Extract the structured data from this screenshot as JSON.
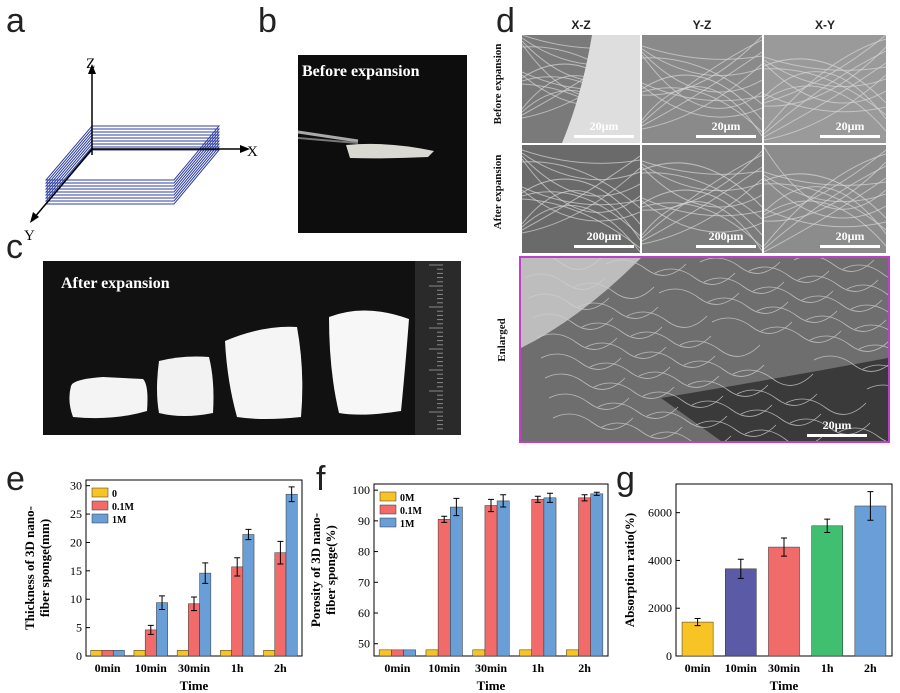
{
  "panel_labels": {
    "a": "a",
    "b": "b",
    "c": "c",
    "d": "d",
    "e": "e",
    "f": "f",
    "g": "g"
  },
  "panel_a": {
    "axis_z": "Z",
    "axis_x": "X",
    "axis_y": "Y"
  },
  "panel_b": {
    "caption": "Before expansion"
  },
  "panel_c": {
    "caption": "After expansion"
  },
  "panel_d": {
    "columns": [
      "X-Z",
      "Y-Z",
      "X-Y"
    ],
    "rows": [
      "Before\nexpansion",
      "After\nexpansion"
    ],
    "row_before": "Before expansion",
    "row_after": "After expansion",
    "scale_before": [
      "20μm",
      "20μm",
      "20μm"
    ],
    "scale_after": [
      "200μm",
      "200μm",
      "20μm"
    ],
    "enlarged_label": "Enlarged",
    "enlarged_scale": "20μm"
  },
  "colors": {
    "yellow": "#f7c325",
    "red": "#f26b6b",
    "blue": "#6a9ed6",
    "purple": "#5b5aa6",
    "green": "#3fbf6f",
    "magenta": "#c13ec9"
  },
  "chart_data": [
    {
      "type": "bar",
      "panel": "e",
      "categories": [
        "0min",
        "10min",
        "30min",
        "1h",
        "2h"
      ],
      "series": [
        {
          "name": "0",
          "values": [
            1,
            1,
            1,
            1,
            1
          ]
        },
        {
          "name": "0.1M",
          "values": [
            1,
            4.6,
            9.2,
            15.7,
            18.2
          ]
        },
        {
          "name": "1M",
          "values": [
            1,
            9.4,
            14.6,
            21.4,
            28.5
          ]
        }
      ],
      "errors": [
        [
          0,
          0,
          0,
          0,
          0
        ],
        [
          0,
          0.8,
          1.2,
          1.6,
          2.0
        ],
        [
          0,
          1.2,
          1.8,
          0.9,
          1.3
        ]
      ],
      "xlabel": "Time",
      "ylabel": "Thickness of 3D nano-fiber sponge(mm)",
      "ylim": [
        0,
        31
      ],
      "yticks": [
        0,
        5,
        10,
        15,
        20,
        25,
        30
      ],
      "legend": "top-left"
    },
    {
      "type": "bar",
      "panel": "f",
      "categories": [
        "0min",
        "10min",
        "30min",
        "1h",
        "2h"
      ],
      "series": [
        {
          "name": "0M",
          "values": [
            48,
            48,
            48,
            48,
            48
          ]
        },
        {
          "name": "0.1M",
          "values": [
            48,
            90.5,
            95,
            97,
            97.5
          ]
        },
        {
          "name": "1M",
          "values": [
            48,
            94.5,
            96.5,
            97.5,
            98.8
          ]
        }
      ],
      "errors": [
        [
          0,
          0,
          0,
          0,
          0
        ],
        [
          0,
          1,
          2,
          1,
          1
        ],
        [
          0,
          2.8,
          2,
          1.5,
          0.5
        ]
      ],
      "xlabel": "Time",
      "ylabel": "Porosity of 3D nano-fiber sponge(%)",
      "ylim": [
        46,
        102
      ],
      "yticks": [
        50,
        60,
        70,
        80,
        90,
        100
      ],
      "legend": "top-left"
    },
    {
      "type": "bar",
      "panel": "g",
      "categories": [
        "0min",
        "10min",
        "30min",
        "1h",
        "2h"
      ],
      "values": [
        1420,
        3650,
        4560,
        5450,
        6280
      ],
      "errors": [
        150,
        400,
        380,
        280,
        600
      ],
      "bar_colors": [
        "#f7c325",
        "#5b5aa6",
        "#f26b6b",
        "#3fbf6f",
        "#6a9ed6"
      ],
      "xlabel": "Time",
      "ylabel": "Absorption ratio(%)",
      "ylim": [
        0,
        7200
      ],
      "yticks": [
        0,
        2000,
        4000,
        6000
      ]
    }
  ]
}
